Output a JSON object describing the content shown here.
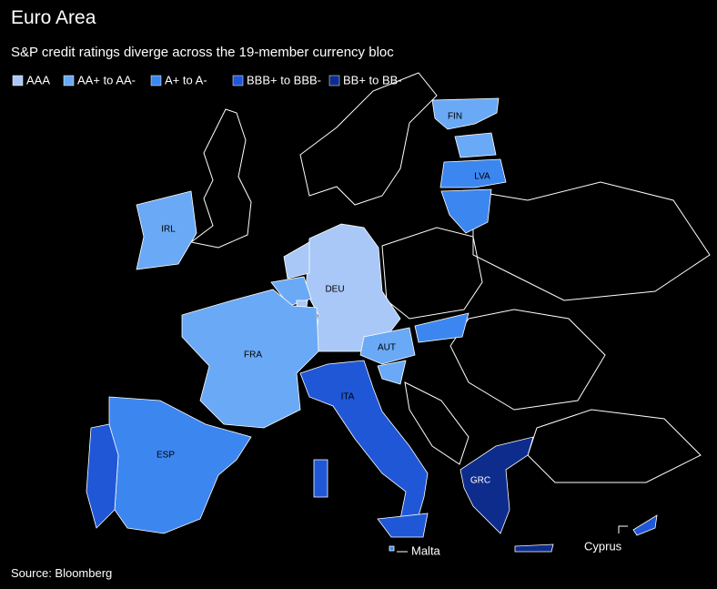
{
  "title": "Euro Area",
  "subtitle": "S&P credit ratings diverge across the 19-member currency bloc",
  "legend": [
    {
      "label": "AAA",
      "color": "#a9c8f7"
    },
    {
      "label": "AA+ to AA-",
      "color": "#6aa9f5"
    },
    {
      "label": "A+ to A-",
      "color": "#3c86f0"
    },
    {
      "label": "BBB+ to BBB-",
      "color": "#1f57d6"
    },
    {
      "label": "BB+ to BB-",
      "color": "#0e2c8c"
    }
  ],
  "countries": [
    {
      "label": "FIN",
      "color": "#6aa9f5"
    },
    {
      "label": null,
      "color": "#6aa9f5"
    },
    {
      "label": "LVA",
      "color": "#3c86f0"
    },
    {
      "label": null,
      "color": "#3c86f0"
    },
    {
      "label": "IRL",
      "color": "#6aa9f5"
    },
    {
      "label": "DEU",
      "color": "#a9c8f7"
    },
    {
      "label": null,
      "color": "#a9c8f7"
    },
    {
      "label": null,
      "color": "#6aa9f5"
    },
    {
      "label": null,
      "color": "#a9c8f7"
    },
    {
      "label": "FRA",
      "color": "#6aa9f5"
    },
    {
      "label": "AUT",
      "color": "#6aa9f5"
    },
    {
      "label": null,
      "color": "#3c86f0"
    },
    {
      "label": null,
      "color": "#6aa9f5"
    },
    {
      "label": "ITA",
      "color": "#1f57d6"
    },
    {
      "label": null,
      "color": "#1f57d6"
    },
    {
      "label": null,
      "color": "#1f57d6"
    },
    {
      "label": "ESP",
      "color": "#3c86f0"
    },
    {
      "label": null,
      "color": "#1f57d6"
    },
    {
      "label": "GRC",
      "color": "#0e2c8c"
    },
    {
      "label": null,
      "color": "#0e2c8c"
    },
    {
      "label": null,
      "color": "#1f57d6"
    },
    {
      "label": null,
      "color": "#3c86f0"
    }
  ],
  "annotations": [
    "Malta",
    "Cyprus"
  ],
  "source": "Source: Bloomberg"
}
